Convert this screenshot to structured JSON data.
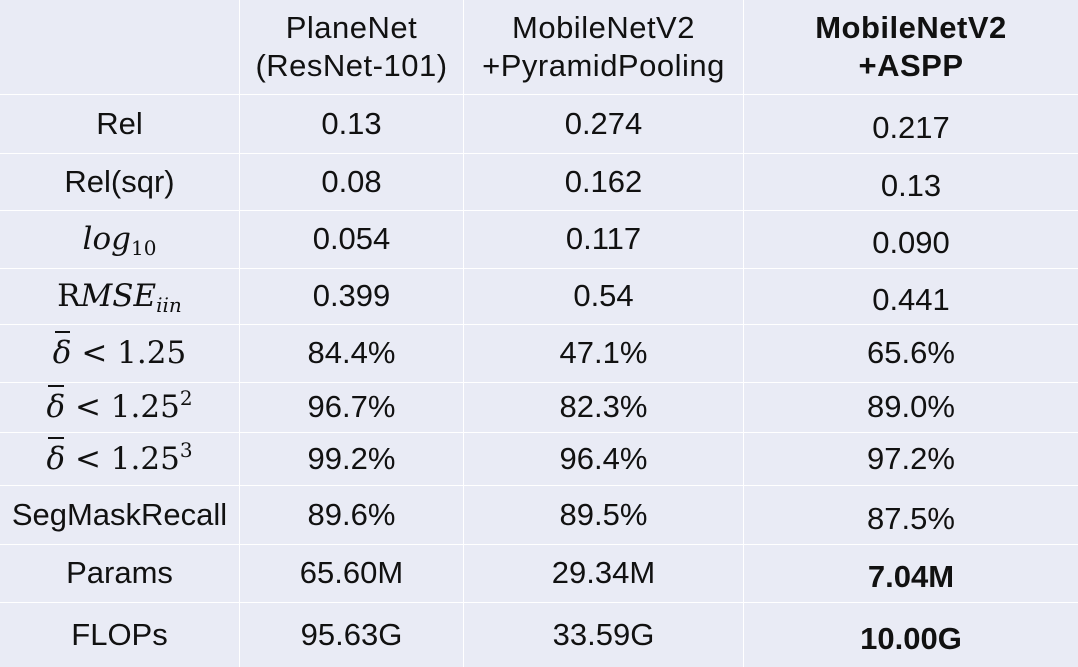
{
  "chart_data": {
    "type": "table",
    "columns": [
      "",
      [
        "PlaneNet",
        "(ResNet-101)"
      ],
      [
        "MobileNetV2",
        "+PyramidPooling"
      ],
      [
        "MobileNetV2",
        "+ASPP"
      ]
    ],
    "bold_column": 3,
    "rows": [
      {
        "label": "Rel",
        "values": [
          "0.13",
          "0.274",
          "0.217"
        ]
      },
      {
        "label": "Rel(sqr)",
        "values": [
          "0.08",
          "0.162",
          "0.13"
        ]
      },
      {
        "label": "log10",
        "values": [
          "0.054",
          "0.117",
          "0.090"
        ]
      },
      {
        "label": "RMSEiin",
        "values": [
          "0.399",
          "0.54",
          "0.441"
        ]
      },
      {
        "label": "δ̄ < 1.25",
        "values": [
          "84.4%",
          "47.1%",
          "65.6%"
        ]
      },
      {
        "label": "δ̄ < 1.25²",
        "values": [
          "96.7%",
          "82.3%",
          "89.0%"
        ]
      },
      {
        "label": "δ̄ < 1.25³",
        "values": [
          "99.2%",
          "96.4%",
          "97.2%"
        ]
      },
      {
        "label": "SegMaskRecall",
        "values": [
          "89.6%",
          "89.5%",
          "87.5%"
        ]
      },
      {
        "label": "Params",
        "values": [
          "65.60M",
          "29.34M",
          "7.04M"
        ],
        "bold_last": true
      },
      {
        "label": "FLOPs",
        "values": [
          "95.63G",
          "33.59G",
          "10.00G"
        ],
        "bold_last": true
      }
    ]
  },
  "math_labels": {
    "log_base": "log",
    "log_sub": "10",
    "rmse_prefix": "R",
    "rmse_italic": "MSE",
    "rmse_sub": "iin",
    "delta": "δ",
    "delta_rest": " < 1.25",
    "sq": "2",
    "cube": "3"
  },
  "colors": {
    "background": "#e9ebf5",
    "grid": "#ffffff",
    "text": "#111111"
  }
}
